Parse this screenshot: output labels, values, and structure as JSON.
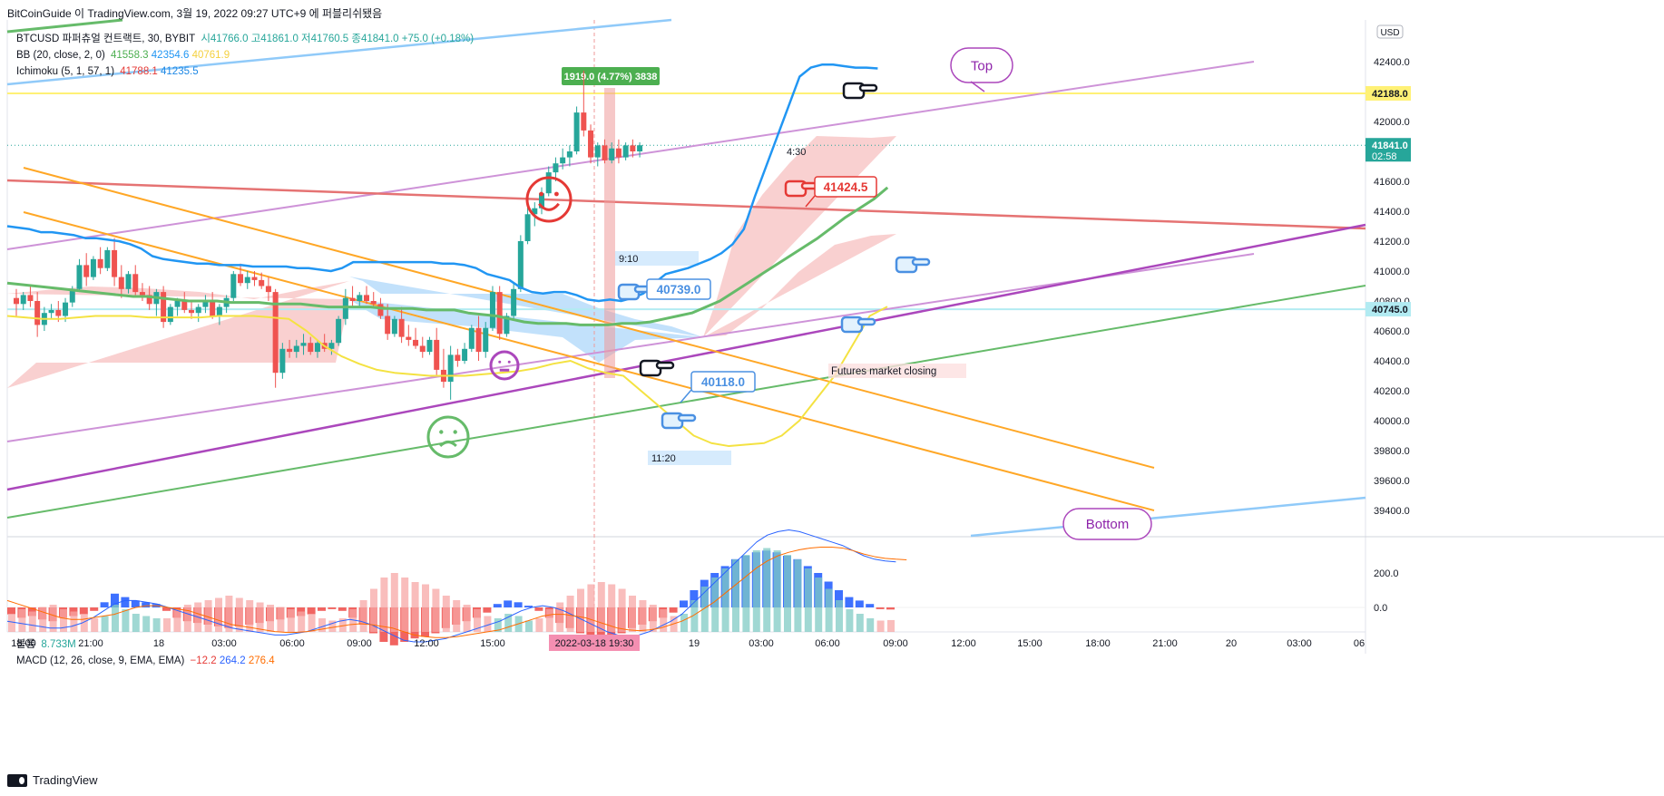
{
  "header": {
    "publish_line": "BitCoinGuide 이 TradingView.com, 3월 19, 2022 09:27 UTC+9 에 퍼블리쉬됐음",
    "symbol_line": {
      "symbol": "BTCUSD 파퍼츄얼 컨트랙트, 30, BYBIT",
      "open": "시41766.0",
      "high": "고41861.0",
      "low": "저41760.5",
      "close": "종41841.0",
      "change": "+75.0 (+0.18%)"
    },
    "bb": {
      "label": "BB (20, close, 2, 0)",
      "basis": "41558.3",
      "upper": "42354.6",
      "lower": "40761.9"
    },
    "ichimoku": {
      "label": "Ichimoku (5, 1, 57, 1)",
      "a": "41788.1",
      "b": "41235.5"
    }
  },
  "sub_legend": {
    "volume_label": "볼륨",
    "volume_value": "8.733M",
    "macd_label": "MACD (12, 26, close, 9, EMA, EMA)",
    "macd_hist": "−12.2",
    "macd_line": "264.2",
    "macd_signal": "276.4"
  },
  "footer": {
    "brand": "TradingView"
  },
  "colors": {
    "up": "#26a69a",
    "down": "#ef5350",
    "bb_basis": "#4caf50",
    "bb_upper": "#2196f3",
    "bb_lower": "#f4e242",
    "cloud_bull": "#f8c8c8",
    "cloud_bear": "#bbdefb",
    "orange": "#ffa726",
    "purple": "#ab47bc",
    "lavender": "#ce93d8",
    "red_line": "#e57373",
    "light_blue": "#90caf9",
    "green_line": "#66bb6a",
    "yellow_level": "#fff176",
    "cyan_level": "#b2ebf2"
  },
  "chart_data": {
    "type": "candlestick",
    "symbol": "BTCUSD",
    "timeframe": "30",
    "exchange": "BYBIT",
    "currency_label": "USD",
    "price_axis": {
      "ylim": [
        39200,
        43000
      ],
      "ticks": [
        "42400.0",
        "42000.0",
        "41600.0",
        "41400.0",
        "41200.0",
        "41000.0",
        "40800.0",
        "40600.0",
        "40400.0",
        "40200.0",
        "40000.0",
        "39800.0",
        "39600.0",
        "39400.0"
      ]
    },
    "time_axis": {
      "ticks": [
        "18:00",
        "21:00",
        "18",
        "03:00",
        "06:00",
        "09:00",
        "12:00",
        "15:00",
        "19",
        "03:00",
        "06:00",
        "09:00",
        "12:00",
        "15:00",
        "18:00",
        "21:00",
        "20",
        "03:00",
        "06"
      ],
      "cursor_label": "2022-03-18  19:30"
    },
    "price_labels": [
      {
        "value": 42188.0,
        "text": "42188.0",
        "bg": "#fff176"
      },
      {
        "value": 41841.0,
        "text": "41841.0",
        "sub": "02:58",
        "bg": "#26a69a"
      },
      {
        "value": 40745.0,
        "text": "40745.0",
        "bg": "#b2ebf2"
      }
    ],
    "candles": [
      [
        40820,
        40880,
        40700,
        40780
      ],
      [
        40780,
        40860,
        40740,
        40840
      ],
      [
        40840,
        40900,
        40760,
        40800
      ],
      [
        40800,
        40860,
        40560,
        40640
      ],
      [
        40640,
        40760,
        40600,
        40720
      ],
      [
        40720,
        40780,
        40680,
        40740
      ],
      [
        40740,
        40800,
        40660,
        40700
      ],
      [
        40700,
        40820,
        40660,
        40790
      ],
      [
        40790,
        40900,
        40760,
        40880
      ],
      [
        40880,
        41080,
        40860,
        41040
      ],
      [
        41040,
        41120,
        40900,
        40960
      ],
      [
        40960,
        41100,
        40940,
        41080
      ],
      [
        41080,
        41160,
        40980,
        41020
      ],
      [
        41020,
        41160,
        41000,
        41140
      ],
      [
        41140,
        41220,
        40900,
        40960
      ],
      [
        40960,
        41040,
        40820,
        40880
      ],
      [
        40880,
        41000,
        40850,
        40980
      ],
      [
        40980,
        41040,
        40840,
        40860
      ],
      [
        40860,
        40920,
        40800,
        40840
      ],
      [
        40840,
        40900,
        40740,
        40780
      ],
      [
        40780,
        40880,
        40700,
        40860
      ],
      [
        40860,
        40900,
        40620,
        40660
      ],
      [
        40660,
        40780,
        40640,
        40760
      ],
      [
        40760,
        40820,
        40700,
        40800
      ],
      [
        40800,
        40860,
        40720,
        40740
      ],
      [
        40740,
        40800,
        40680,
        40720
      ],
      [
        40720,
        40780,
        40660,
        40760
      ],
      [
        40760,
        40840,
        40720,
        40800
      ],
      [
        40800,
        40860,
        40680,
        40700
      ],
      [
        40700,
        40780,
        40640,
        40760
      ],
      [
        40760,
        40840,
        40720,
        40820
      ],
      [
        40820,
        41000,
        40800,
        40980
      ],
      [
        40980,
        41050,
        40900,
        40920
      ],
      [
        40920,
        41000,
        40880,
        40960
      ],
      [
        40960,
        41000,
        40900,
        40940
      ],
      [
        40940,
        40990,
        40880,
        40900
      ],
      [
        40900,
        40960,
        40800,
        40860
      ],
      [
        40860,
        40880,
        40220,
        40320
      ],
      [
        40320,
        40520,
        40280,
        40480
      ],
      [
        40480,
        40540,
        40420,
        40460
      ],
      [
        40460,
        40540,
        40420,
        40500
      ],
      [
        40500,
        40580,
        40440,
        40520
      ],
      [
        40520,
        40560,
        40440,
        40460
      ],
      [
        40460,
        40540,
        40420,
        40520
      ],
      [
        40520,
        40580,
        40460,
        40480
      ],
      [
        40480,
        40540,
        40440,
        40520
      ],
      [
        40520,
        40700,
        40500,
        40680
      ],
      [
        40680,
        40880,
        40640,
        40820
      ],
      [
        40820,
        40900,
        40760,
        40800
      ],
      [
        40800,
        40860,
        40760,
        40840
      ],
      [
        40840,
        40900,
        40780,
        40800
      ],
      [
        40800,
        40860,
        40760,
        40780
      ],
      [
        40780,
        40820,
        40680,
        40700
      ],
      [
        40700,
        40780,
        40540,
        40580
      ],
      [
        40580,
        40700,
        40560,
        40680
      ],
      [
        40680,
        40760,
        40520,
        40560
      ],
      [
        40560,
        40640,
        40500,
        40540
      ],
      [
        40540,
        40620,
        40480,
        40500
      ],
      [
        40500,
        40560,
        40420,
        40460
      ],
      [
        40460,
        40560,
        40440,
        40540
      ],
      [
        40540,
        40620,
        40300,
        40340
      ],
      [
        40340,
        40480,
        40220,
        40260
      ],
      [
        40260,
        40500,
        40140,
        40440
      ],
      [
        40440,
        40480,
        40360,
        40400
      ],
      [
        40400,
        40520,
        40380,
        40480
      ],
      [
        40480,
        40640,
        40460,
        40620
      ],
      [
        40620,
        40700,
        40400,
        40460
      ],
      [
        40460,
        40660,
        40420,
        40620
      ],
      [
        40620,
        40900,
        40600,
        40860
      ],
      [
        40860,
        40900,
        40540,
        40580
      ],
      [
        40580,
        40720,
        40560,
        40700
      ],
      [
        40700,
        40920,
        40680,
        40880
      ],
      [
        40880,
        41240,
        40860,
        41200
      ],
      [
        41200,
        41440,
        41180,
        41380
      ],
      [
        41380,
        41460,
        41300,
        41420
      ],
      [
        41420,
        41560,
        41380,
        41520
      ],
      [
        41520,
        41700,
        41500,
        41660
      ],
      [
        41660,
        41760,
        41600,
        41720
      ],
      [
        41720,
        41820,
        41680,
        41760
      ],
      [
        41760,
        41840,
        41700,
        41800
      ],
      [
        41800,
        42100,
        41780,
        42060
      ],
      [
        42060,
        42340,
        41900,
        41940
      ],
      [
        41940,
        41980,
        41720,
        41760
      ],
      [
        41760,
        41860,
        41700,
        41840
      ],
      [
        41840,
        41880,
        41720,
        41740
      ],
      [
        41740,
        41860,
        41720,
        41820
      ],
      [
        41820,
        41880,
        41720,
        41760
      ],
      [
        41760,
        41860,
        41740,
        41840
      ],
      [
        41840,
        41880,
        41760,
        41800
      ],
      [
        41800,
        41861,
        41760,
        41841
      ]
    ],
    "indicators": {
      "bb_upper": [
        41300,
        41290,
        41280,
        41260,
        41260,
        41250,
        41240,
        41220,
        41220,
        41210,
        41200,
        41180,
        41150,
        41100,
        41080,
        41070,
        41060,
        41050,
        41050,
        41040,
        41040,
        41040,
        41030,
        41030,
        41030,
        41030,
        41020,
        41020,
        41010,
        41000,
        41020,
        41060,
        41060,
        41060,
        41060,
        41060,
        41060,
        41060,
        41060,
        41050,
        41050,
        41040,
        41020,
        40980,
        40960,
        40940,
        40890,
        40860,
        40850,
        40860,
        40860,
        40840,
        40810,
        40800,
        40810,
        40800,
        40820,
        40850,
        40920,
        40980,
        41000,
        41020,
        41050,
        41080,
        41120,
        41180,
        41280,
        41500,
        41700,
        41900,
        42100,
        42300,
        42360,
        42380,
        42380,
        42370,
        42360,
        42360,
        42354.6
      ],
      "bb_basis": [
        40920,
        40910,
        40900,
        40890,
        40880,
        40870,
        40860,
        40850,
        40840,
        40830,
        40830,
        40820,
        40810,
        40800,
        40800,
        40800,
        40790,
        40790,
        40790,
        40780,
        40780,
        40780,
        40770,
        40760,
        40760,
        40760,
        40760,
        40750,
        40750,
        40750,
        40740,
        40740,
        40740,
        40720,
        40710,
        40700,
        40680,
        40660,
        40650,
        40650,
        40650,
        40640,
        40640,
        40640,
        40650,
        40650,
        40660,
        40680,
        40700,
        40720,
        40760,
        40800,
        40860,
        40920,
        40980,
        41040,
        41100,
        41160,
        41220,
        41290,
        41360,
        41420,
        41480,
        41558.3
      ],
      "bb_lower": [
        40700,
        40690,
        40680,
        40680,
        40690,
        40700,
        40700,
        40700,
        40690,
        40690,
        40690,
        40690,
        40700,
        40700,
        40700,
        40690,
        40680,
        40600,
        40500,
        40430,
        40380,
        40340,
        40320,
        40310,
        40300,
        40300,
        40300,
        40310,
        40320,
        40330,
        40350,
        40380,
        40400,
        40350,
        40320,
        40300,
        40200,
        40100,
        40000,
        39900,
        39850,
        39830,
        39840,
        39850,
        39900,
        40000,
        40150,
        40300,
        40500,
        40700,
        40761.9
      ]
    },
    "annotations": {
      "measure": "1919.0 (4.77%) 3838",
      "labels": [
        "9:10",
        "11:20",
        "4:30"
      ],
      "price_callouts": [
        "41424.5",
        "40739.0",
        "40118.0"
      ],
      "text_notes": [
        "Futures market closing"
      ],
      "bubbles": [
        "Top",
        "Bottom"
      ]
    },
    "macd": {
      "ticks": [
        "200.0",
        "0.0"
      ],
      "hist": [
        -40,
        -60,
        -50,
        -70,
        -80,
        -60,
        -50,
        -40,
        -20,
        30,
        80,
        60,
        40,
        30,
        20,
        -20,
        -60,
        -80,
        -90,
        -100,
        -110,
        -120,
        -110,
        -100,
        -90,
        -80,
        -70,
        -60,
        -50,
        -40,
        -20,
        -10,
        -20,
        -60,
        -100,
        -150,
        -200,
        -220,
        -200,
        -180,
        -170,
        -150,
        -120,
        -100,
        -80,
        -60,
        -30,
        20,
        40,
        30,
        10,
        -20,
        -60,
        -90,
        -120,
        -150,
        -170,
        -180,
        -170,
        -150,
        -120,
        -100,
        -80,
        -60,
        -30,
        40,
        100,
        160,
        200,
        240,
        280,
        300,
        320,
        330,
        320,
        300,
        280,
        240,
        200,
        150,
        100,
        60,
        40,
        20,
        -10,
        -12.2
      ],
      "line": [
        -80,
        -90,
        -100,
        -110,
        -120,
        -120,
        -110,
        -90,
        -60,
        -20,
        20,
        40,
        40,
        30,
        20,
        0,
        -20,
        -40,
        -60,
        -80,
        -100,
        -120,
        -130,
        -140,
        -150,
        -160,
        -160,
        -150,
        -140,
        -120,
        -100,
        -80,
        -70,
        -80,
        -100,
        -130,
        -160,
        -190,
        -200,
        -200,
        -190,
        -180,
        -160,
        -140,
        -120,
        -100,
        -80,
        -50,
        -20,
        0,
        10,
        0,
        -20,
        -50,
        -80,
        -110,
        -140,
        -160,
        -170,
        -160,
        -140,
        -110,
        -80,
        -40,
        20,
        80,
        140,
        200,
        260,
        320,
        380,
        420,
        440,
        450,
        440,
        420,
        400,
        380,
        360,
        330,
        300,
        280,
        270,
        264.2
      ],
      "signal": [
        40,
        20,
        0,
        -20,
        -40,
        -60,
        -70,
        -70,
        -60,
        -50,
        -40,
        -20,
        0,
        10,
        10,
        0,
        -10,
        -20,
        -40,
        -60,
        -80,
        -100,
        -110,
        -120,
        -130,
        -140,
        -145,
        -145,
        -140,
        -130,
        -120,
        -110,
        -100,
        -95,
        -100,
        -110,
        -120,
        -140,
        -160,
        -170,
        -175,
        -175,
        -170,
        -160,
        -150,
        -140,
        -130,
        -110,
        -90,
        -70,
        -50,
        -40,
        -40,
        -50,
        -60,
        -80,
        -100,
        -120,
        -130,
        -135,
        -130,
        -120,
        -100,
        -80,
        -50,
        -10,
        30,
        80,
        130,
        180,
        230,
        270,
        300,
        320,
        335,
        345,
        350,
        350,
        345,
        330,
        310,
        295,
        285,
        280,
        276.4
      ]
    }
  }
}
